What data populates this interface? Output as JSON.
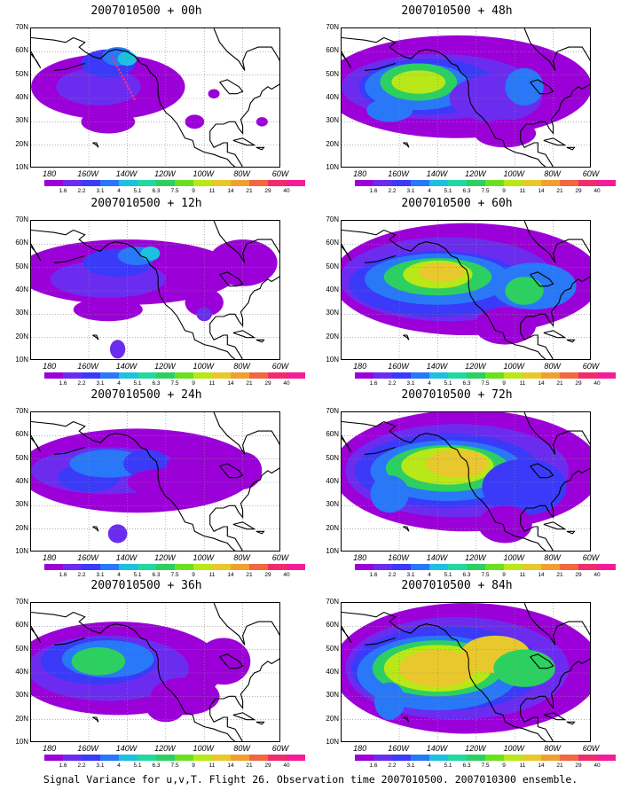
{
  "panels": [
    {
      "title": "2007010500 + 00h"
    },
    {
      "title": "2007010500 + 12h"
    },
    {
      "title": "2007010500 + 24h"
    },
    {
      "title": "2007010500 + 36h"
    },
    {
      "title": "2007010500 + 48h"
    },
    {
      "title": "2007010500 + 60h"
    },
    {
      "title": "2007010500 + 72h"
    },
    {
      "title": "2007010500 + 84h"
    }
  ],
  "lat_labels": [
    "70N",
    "60N",
    "50N",
    "40N",
    "30N",
    "20N",
    "10N"
  ],
  "lon_labels": [
    "180",
    "160W",
    "140W",
    "120W",
    "100W",
    "80W",
    "60W"
  ],
  "colorbar": {
    "labels": [
      "1.6",
      "2.2",
      "3.1",
      "4",
      "5.1",
      "6.3",
      "7.5",
      "9",
      "11",
      "14",
      "21",
      "29",
      "40"
    ],
    "colors": [
      "#9c00d8",
      "#6c2cf0",
      "#3a3af8",
      "#2878f8",
      "#1ec0e0",
      "#22d8a0",
      "#2cd060",
      "#6ce020",
      "#b8e818",
      "#e8c82c",
      "#f0a030",
      "#f06840",
      "#f02c6c",
      "#f41c98"
    ]
  },
  "caption": "Signal Variance for u,v,T. Flight 26. Observation time 2007010500. 2007010300 ensemble."
}
